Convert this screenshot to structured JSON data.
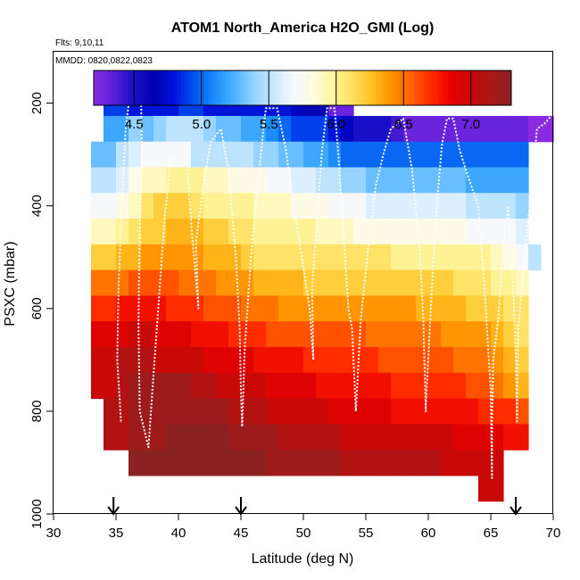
{
  "chart_data": {
    "type": "heatmap",
    "title": "ATOM1 North_America H2O_GMI (Log)",
    "subtitle_flights": "Flts: 9,10,11",
    "subtitle_dates": "MMDD: 0820,0822,0823",
    "xlabel": "Latitude (deg N)",
    "ylabel": "PSXC (mbar)",
    "xlim": [
      30,
      70
    ],
    "ylim": [
      1000,
      100
    ],
    "x_ticks": [
      30,
      35,
      40,
      45,
      50,
      55,
      60,
      65,
      70
    ],
    "y_ticks": [
      200,
      400,
      600,
      800,
      1000
    ],
    "colorbar": {
      "range": [
        4.2,
        7.3
      ],
      "ticks": [
        4.5,
        5.0,
        5.5,
        6.0,
        6.5,
        7.0
      ],
      "colors": [
        "#8a2be2",
        "#5a1fd8",
        "#1a10c8",
        "#0000b0",
        "#0010d8",
        "#0050f0",
        "#1888f8",
        "#48b0ff",
        "#90d0ff",
        "#c8e8ff",
        "#f4f8ff",
        "#fffbe0",
        "#fff6a0",
        "#ffe060",
        "#ffc020",
        "#ff9000",
        "#ff6000",
        "#ff2800",
        "#e80000",
        "#c80808",
        "#a81818",
        "#8a2222"
      ]
    },
    "markers_lat": [
      34.8,
      45.0,
      67.0
    ],
    "lat_edges": [
      32.0,
      33.0,
      34.0,
      35.0,
      36.0,
      37.0,
      38.0,
      39.0,
      40.0,
      41.0,
      42.0,
      43.0,
      44.0,
      45.0,
      46.0,
      47.0,
      48.0,
      49.0,
      50.0,
      51.0,
      52.0,
      53.0,
      54.0,
      55.0,
      56.0,
      57.0,
      58.0,
      59.0,
      60.0,
      61.0,
      62.0,
      63.0,
      64.0,
      65.0,
      66.0,
      67.0,
      68.0,
      69.0,
      70.0
    ],
    "p_edges": [
      175,
      225,
      275,
      325,
      375,
      425,
      475,
      525,
      575,
      625,
      675,
      725,
      775,
      825,
      875,
      925,
      975
    ],
    "grid": [
      [
        null,
        null,
        4.9,
        4.9,
        4.8,
        4.8,
        4.8,
        4.8,
        4.9,
        4.9,
        4.8,
        4.8,
        4.8,
        4.8,
        4.8,
        4.8,
        4.8,
        4.7,
        4.6,
        4.6,
        4.3,
        4.3,
        null,
        null,
        null,
        null,
        null,
        null,
        null,
        null,
        null,
        null,
        null,
        null,
        null,
        null,
        null,
        null
      ],
      [
        null,
        null,
        5.2,
        5.2,
        5.4,
        5.3,
        5.4,
        5.5,
        5.5,
        5.5,
        5.4,
        5.3,
        5.3,
        5.2,
        5.2,
        5.1,
        5.0,
        4.9,
        4.9,
        4.9,
        4.8,
        4.7,
        4.5,
        4.5,
        4.5,
        4.4,
        4.3,
        4.3,
        4.3,
        4.3,
        4.3,
        4.3,
        4.3,
        4.3,
        4.3,
        4.3,
        4.2,
        4.2
      ],
      [
        null,
        5.3,
        5.3,
        5.5,
        5.6,
        5.7,
        5.7,
        5.7,
        5.7,
        5.5,
        5.5,
        5.5,
        5.5,
        5.5,
        5.4,
        5.4,
        5.3,
        5.3,
        5.2,
        5.2,
        5.1,
        5.0,
        5.0,
        5.0,
        5.0,
        5.0,
        5.0,
        5.0,
        5.0,
        5.0,
        5.0,
        5.0,
        5.0,
        5.0,
        5.0,
        5.0,
        null,
        null
      ],
      [
        null,
        5.5,
        5.5,
        5.6,
        5.8,
        5.9,
        5.9,
        6.0,
        6.0,
        6.0,
        5.9,
        5.9,
        5.8,
        5.8,
        5.8,
        5.7,
        5.7,
        5.6,
        5.6,
        5.5,
        5.5,
        5.4,
        5.4,
        5.3,
        5.3,
        5.3,
        5.3,
        5.3,
        5.3,
        5.3,
        5.3,
        5.2,
        5.2,
        5.2,
        5.2,
        5.2,
        null,
        null
      ],
      [
        null,
        5.7,
        5.7,
        5.8,
        5.9,
        6.1,
        6.2,
        6.2,
        6.2,
        6.1,
        6.0,
        6.0,
        6.0,
        6.0,
        5.9,
        5.9,
        5.9,
        5.8,
        5.8,
        5.8,
        5.7,
        5.7,
        5.7,
        5.6,
        5.6,
        5.6,
        5.6,
        5.6,
        5.6,
        5.6,
        5.6,
        5.5,
        5.5,
        5.5,
        5.5,
        5.4,
        null,
        null
      ],
      [
        null,
        5.9,
        5.9,
        6.0,
        6.1,
        6.2,
        6.2,
        6.3,
        6.3,
        6.3,
        6.2,
        6.2,
        6.1,
        6.1,
        6.0,
        6.0,
        6.0,
        6.0,
        6.0,
        5.9,
        5.9,
        5.9,
        5.8,
        5.8,
        5.8,
        5.8,
        5.8,
        5.8,
        5.8,
        5.8,
        5.8,
        5.7,
        5.7,
        5.7,
        5.7,
        5.6,
        null,
        null
      ],
      [
        null,
        6.2,
        6.2,
        6.3,
        6.3,
        6.4,
        6.4,
        6.4,
        6.4,
        6.4,
        6.3,
        6.3,
        6.3,
        6.2,
        6.1,
        6.1,
        6.1,
        6.1,
        6.1,
        6.1,
        6.1,
        6.1,
        6.1,
        6.1,
        6.1,
        6.0,
        6.0,
        6.0,
        6.0,
        6.0,
        6.0,
        6.0,
        6.0,
        5.9,
        5.8,
        5.7,
        5.5,
        null
      ],
      [
        null,
        6.5,
        6.5,
        6.5,
        6.6,
        6.6,
        6.6,
        6.6,
        6.5,
        6.5,
        6.5,
        6.4,
        6.4,
        6.4,
        6.3,
        6.3,
        6.3,
        6.3,
        6.2,
        6.2,
        6.2,
        6.2,
        6.2,
        6.2,
        6.2,
        6.2,
        6.2,
        6.2,
        6.2,
        6.2,
        6.1,
        6.1,
        6.1,
        6.0,
        6.0,
        5.9,
        null,
        null
      ],
      [
        null,
        6.7,
        6.7,
        6.8,
        6.8,
        6.8,
        6.8,
        6.7,
        6.7,
        6.7,
        6.6,
        6.6,
        6.6,
        6.5,
        6.5,
        6.5,
        6.4,
        6.4,
        6.4,
        6.4,
        6.4,
        6.4,
        6.4,
        6.4,
        6.4,
        6.4,
        6.4,
        6.3,
        6.3,
        6.3,
        6.3,
        6.2,
        6.2,
        6.2,
        6.1,
        6.1,
        null,
        null
      ],
      [
        null,
        6.9,
        6.9,
        6.9,
        7.0,
        7.0,
        6.9,
        6.9,
        6.9,
        6.8,
        6.8,
        6.8,
        6.7,
        6.7,
        6.7,
        6.6,
        6.6,
        6.6,
        6.6,
        6.6,
        6.6,
        6.6,
        6.6,
        6.5,
        6.5,
        6.5,
        6.5,
        6.5,
        6.5,
        6.4,
        6.4,
        6.4,
        6.4,
        6.3,
        6.2,
        6.1,
        null,
        null
      ],
      [
        null,
        7.0,
        7.0,
        7.1,
        7.1,
        7.1,
        7.0,
        7.0,
        7.0,
        7.0,
        6.9,
        6.9,
        6.9,
        6.9,
        6.8,
        6.8,
        6.8,
        6.8,
        6.7,
        6.7,
        6.7,
        6.7,
        6.7,
        6.7,
        6.6,
        6.6,
        6.6,
        6.6,
        6.6,
        6.6,
        6.5,
        6.5,
        6.5,
        6.4,
        6.3,
        6.2,
        null,
        null
      ],
      [
        null,
        7.0,
        7.0,
        7.1,
        7.2,
        7.2,
        7.2,
        7.2,
        7.2,
        7.1,
        7.1,
        7.0,
        7.0,
        7.0,
        7.0,
        6.9,
        6.9,
        6.9,
        6.9,
        6.8,
        6.8,
        6.8,
        6.8,
        6.8,
        6.8,
        6.7,
        6.7,
        6.7,
        6.7,
        6.7,
        6.7,
        6.6,
        6.6,
        6.5,
        6.4,
        6.3,
        null,
        null
      ],
      [
        null,
        null,
        7.1,
        7.1,
        7.2,
        7.2,
        7.2,
        7.2,
        7.2,
        7.2,
        7.2,
        7.2,
        7.1,
        7.1,
        7.1,
        7.0,
        7.0,
        7.0,
        7.0,
        7.0,
        6.9,
        6.9,
        6.9,
        6.9,
        6.9,
        6.8,
        6.8,
        6.8,
        6.8,
        6.8,
        6.8,
        6.8,
        6.7,
        6.7,
        6.7,
        6.6,
        null,
        null
      ],
      [
        null,
        null,
        7.1,
        7.1,
        7.2,
        7.2,
        7.2,
        7.3,
        7.3,
        7.3,
        7.3,
        7.3,
        7.2,
        7.2,
        7.2,
        7.2,
        7.1,
        7.1,
        7.1,
        7.1,
        7.1,
        7.0,
        7.0,
        7.0,
        7.0,
        7.0,
        7.0,
        7.0,
        7.0,
        7.0,
        6.9,
        6.9,
        6.9,
        6.9,
        6.8,
        6.8,
        null,
        null
      ],
      [
        null,
        null,
        null,
        null,
        7.3,
        7.3,
        7.3,
        7.3,
        7.3,
        7.3,
        7.3,
        7.3,
        7.3,
        7.3,
        7.3,
        7.2,
        7.2,
        7.2,
        7.2,
        7.2,
        7.2,
        7.1,
        7.1,
        7.1,
        7.1,
        7.1,
        7.1,
        7.1,
        7.1,
        7.0,
        7.0,
        7.0,
        7.0,
        7.0,
        null,
        null,
        null,
        null
      ],
      [
        null,
        null,
        null,
        null,
        null,
        null,
        null,
        null,
        null,
        null,
        null,
        null,
        null,
        null,
        null,
        null,
        null,
        null,
        null,
        null,
        null,
        null,
        null,
        null,
        null,
        null,
        null,
        null,
        null,
        null,
        null,
        null,
        7.0,
        7.0,
        null,
        null,
        null,
        null
      ]
    ],
    "flight_track": [
      [
        35.4,
        820
      ],
      [
        35.1,
        700
      ],
      [
        35.2,
        560
      ],
      [
        35.4,
        440
      ],
      [
        35.6,
        330
      ],
      [
        35.8,
        240
      ],
      [
        36.1,
        190
      ],
      [
        37.0,
        190
      ],
      [
        37.1,
        300
      ],
      [
        36.9,
        450
      ],
      [
        36.8,
        630
      ],
      [
        36.9,
        800
      ],
      [
        37.6,
        870
      ],
      [
        38.0,
        730
      ],
      [
        38.5,
        560
      ],
      [
        38.9,
        420
      ],
      [
        39.4,
        310
      ],
      [
        40.3,
        305
      ],
      [
        40.7,
        320
      ],
      [
        41.1,
        460
      ],
      [
        41.6,
        600
      ],
      [
        41.4,
        470
      ],
      [
        42.0,
        360
      ],
      [
        42.6,
        275
      ],
      [
        43.4,
        250
      ],
      [
        44.0,
        330
      ],
      [
        44.6,
        500
      ],
      [
        44.9,
        640
      ],
      [
        45.0,
        760
      ],
      [
        45.1,
        830
      ],
      [
        45.3,
        680
      ],
      [
        45.8,
        500
      ],
      [
        46.3,
        370
      ],
      [
        46.8,
        250
      ],
      [
        47.0,
        210
      ],
      [
        47.9,
        210
      ],
      [
        48.6,
        290
      ],
      [
        49.2,
        400
      ],
      [
        50.0,
        520
      ],
      [
        50.5,
        600
      ],
      [
        50.8,
        700
      ],
      [
        50.7,
        560
      ],
      [
        51.1,
        420
      ],
      [
        51.5,
        290
      ],
      [
        51.9,
        210
      ],
      [
        52.5,
        210
      ],
      [
        52.8,
        300
      ],
      [
        53.2,
        450
      ],
      [
        53.6,
        600
      ],
      [
        53.9,
        640
      ],
      [
        54.2,
        800
      ],
      [
        54.6,
        620
      ],
      [
        55.2,
        480
      ],
      [
        55.8,
        360
      ],
      [
        56.4,
        300
      ],
      [
        57.0,
        250
      ],
      [
        58.0,
        230
      ],
      [
        58.7,
        330
      ],
      [
        59.3,
        480
      ],
      [
        59.6,
        620
      ],
      [
        59.8,
        800
      ],
      [
        59.8,
        790
      ],
      [
        60.2,
        600
      ],
      [
        60.6,
        420
      ],
      [
        61.1,
        280
      ],
      [
        61.5,
        230
      ],
      [
        62.0,
        230
      ],
      [
        62.5,
        290
      ],
      [
        63.0,
        330
      ],
      [
        63.5,
        365
      ],
      [
        64.0,
        400
      ],
      [
        64.5,
        560
      ],
      [
        65.0,
        760
      ],
      [
        65.1,
        930
      ],
      [
        65.1,
        820
      ],
      [
        65.2,
        700
      ],
      [
        65.6,
        620
      ],
      [
        66.0,
        480
      ],
      [
        66.4,
        400
      ],
      [
        66.8,
        560
      ],
      [
        67.0,
        690
      ],
      [
        67.1,
        820
      ],
      [
        67.2,
        640
      ],
      [
        67.7,
        500
      ],
      [
        68.2,
        380
      ],
      [
        68.7,
        250
      ],
      [
        69.3,
        240
      ],
      [
        70.0,
        220
      ]
    ]
  }
}
